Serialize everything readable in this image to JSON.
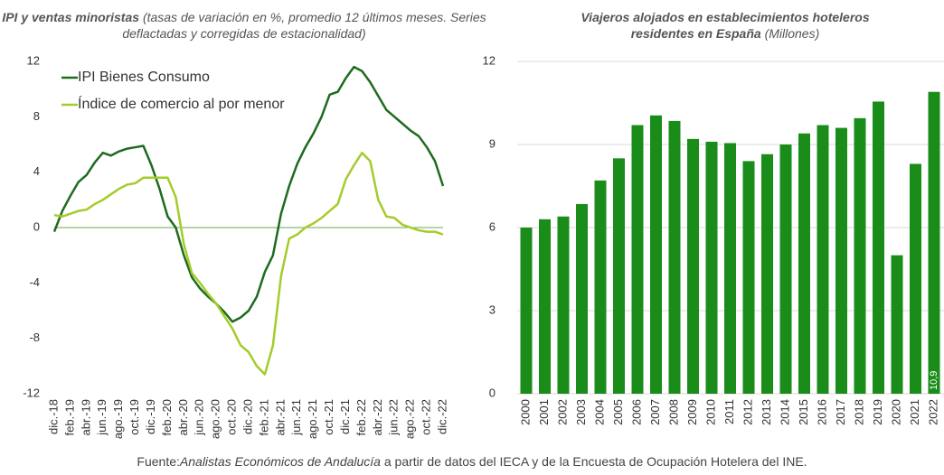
{
  "chart_data": [
    {
      "type": "line",
      "title": "IPI y ventas minoristas",
      "subtitle": "(tasas de variación en %, promedio 12 últimos meses. Series deflactadas y corregidas de estacionalidad)",
      "categories": [
        "dic.-18",
        null,
        "feb.-19",
        null,
        "abr.-19",
        null,
        "jun.-19",
        null,
        "ago.-19",
        null,
        "oct.-19",
        null,
        "dic.-19",
        null,
        "feb.-20",
        null,
        "abr.-20",
        null,
        "jun.-20",
        null,
        "ago.-20",
        null,
        "oct.-20",
        null,
        "dic.-20",
        null,
        "feb.-21",
        null,
        "abr.-21",
        null,
        "jun.-21",
        null,
        "ago.-21",
        null,
        "oct.-21",
        null,
        "dic.-21",
        null,
        "feb.-22",
        null,
        "abr.-22",
        null,
        "jun.-22",
        null,
        "ago.-22",
        null,
        "oct.-22",
        null,
        "dic.-22"
      ],
      "series": [
        {
          "name": "IPI Bienes Consumo",
          "color": "#1e6b1e",
          "values": [
            -0.3,
            1.2,
            2.3,
            3.3,
            3.8,
            4.7,
            5.4,
            5.2,
            5.5,
            5.7,
            5.8,
            5.9,
            4.5,
            2.8,
            0.8,
            0,
            -2.0,
            -3.6,
            -4.4,
            -5.0,
            -5.5,
            -6.1,
            -6.8,
            -6.5,
            -6.0,
            -5.0,
            -3.2,
            -2.0,
            1.0,
            3.0,
            4.6,
            5.8,
            6.8,
            8.0,
            9.6,
            9.8,
            10.8,
            11.6,
            11.3,
            10.5,
            9.5,
            8.5,
            8.0,
            7.5,
            7.0,
            6.6,
            5.8,
            4.8,
            3.0
          ]
        },
        {
          "name": "Índice de comercio al por menor",
          "color": "#a4cc2a",
          "values": [
            0.9,
            0.8,
            1.0,
            1.2,
            1.3,
            1.7,
            2.0,
            2.4,
            2.8,
            3.1,
            3.2,
            3.6,
            3.6,
            3.6,
            3.6,
            2.2,
            -1.2,
            -3.3,
            -4.0,
            -4.8,
            -5.5,
            -6.4,
            -7.3,
            -8.5,
            -9.0,
            -10.0,
            -10.6,
            -8.5,
            -3.5,
            -0.8,
            -0.5,
            0,
            0.3,
            0.7,
            1.2,
            1.7,
            3.5,
            4.5,
            5.4,
            4.8,
            2.0,
            0.8,
            0.7,
            0.2,
            0,
            -0.2,
            -0.3,
            -0.3,
            -0.5
          ]
        }
      ],
      "ylim": [
        -12,
        12
      ],
      "yticks": [
        12,
        8,
        4,
        0,
        -4,
        -8,
        -12
      ],
      "grid": false,
      "zero_line": "#6aa84f",
      "legend": "top-left"
    },
    {
      "type": "bar",
      "title": "Viajeros alojados en establecimientos hoteleros residentes en España",
      "subtitle": "(Millones)",
      "categories": [
        "2000",
        "2001",
        "2002",
        "2003",
        "2004",
        "2005",
        "2006",
        "2007",
        "2008",
        "2009",
        "2010",
        "2011",
        "2012",
        "2013",
        "2014",
        "2015",
        "2016",
        "2017",
        "2018",
        "2019",
        "2020",
        "2021",
        "2022"
      ],
      "values": [
        6.0,
        6.3,
        6.4,
        6.85,
        7.7,
        8.5,
        9.7,
        10.05,
        9.85,
        9.2,
        9.1,
        9.05,
        8.4,
        8.65,
        9.0,
        9.4,
        9.7,
        9.6,
        9.95,
        10.55,
        5.0,
        8.3,
        10.9
      ],
      "value_labels": [
        null,
        null,
        null,
        null,
        null,
        null,
        null,
        null,
        null,
        null,
        null,
        null,
        null,
        null,
        null,
        null,
        null,
        null,
        null,
        null,
        null,
        null,
        "10,9"
      ],
      "color": "#1a8c1a",
      "ylim": [
        0,
        12
      ],
      "yticks": [
        0,
        3,
        6,
        9,
        12
      ],
      "grid": true
    }
  ],
  "source": {
    "prefix": "Fuente:",
    "author": "Analistas Económicos de Andalucía",
    "rest": "a partir de datos del IECA y de la Encuesta de Ocupación Hotelera del INE."
  }
}
